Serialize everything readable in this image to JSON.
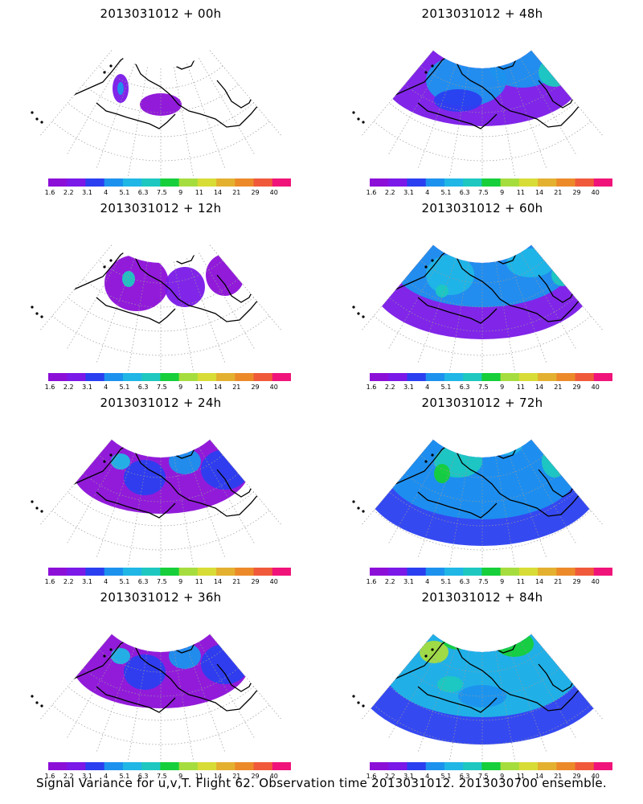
{
  "panels": [
    {
      "title": "2013031012 + 00h",
      "level": 0
    },
    {
      "title": "2013031012 + 48h",
      "level": 3
    },
    {
      "title": "2013031012 + 12h",
      "level": 1
    },
    {
      "title": "2013031012 + 60h",
      "level": 4
    },
    {
      "title": "2013031012 + 24h",
      "level": 2
    },
    {
      "title": "2013031012 + 72h",
      "level": 5
    },
    {
      "title": "2013031012 + 36h",
      "level": 2
    },
    {
      "title": "2013031012 + 84h",
      "level": 6
    }
  ],
  "colorbar": {
    "labels": [
      "1.6",
      "2.2",
      "3.1",
      "4",
      "5.1",
      "6.3",
      "7.5",
      "9",
      "11",
      "14",
      "21",
      "29",
      "40"
    ],
    "colors": [
      "#8c0fd8",
      "#7a19e8",
      "#2a3ff0",
      "#1c92ee",
      "#20b6e6",
      "#1ec8c0",
      "#16cf3a",
      "#a6dd3e",
      "#d8dc36",
      "#e4b030",
      "#ec8a2a",
      "#f05a3a",
      "#f0147a"
    ]
  },
  "caption": "Signal Variance for u,v,T. Flight 62. Observation time 2013031012. 2013030700 ensemble."
}
